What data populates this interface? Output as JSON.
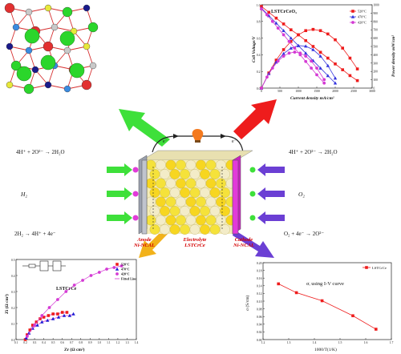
{
  "reactions": {
    "anode_water": "4H⁺ + 2O²⁻ → 2H₂O",
    "anode_h2": "H₂",
    "anode_split": "2H₂ → 4H⁺ + 4e⁻",
    "cathode_water": "4H⁺ + 2O²⁻ → 2H₂O",
    "cathode_o2": "O₂",
    "cathode_red": "O₂ + 4e⁻ → 2O²⁻",
    "electron_left": "e⁻",
    "electron_right": "e⁻"
  },
  "cell_labels": {
    "anode_line1": "Anode",
    "anode_line2": "Ni-NCAL",
    "electrolyte_line1": "Electrolyte",
    "electrolyte_line2": "LSTCrCe",
    "cathode_line1": "Cathode",
    "cathode_line2": "Ni-NCAL"
  },
  "colors": {
    "arrow_green": "#3ee03a",
    "arrow_red": "#ee1c1c",
    "arrow_orange": "#f2b21a",
    "arrow_purple": "#6b3fd4",
    "anode_plate": "#9aa0ae",
    "cathode_plate": "#e23ad9",
    "ball_yellow": "#f5e23a",
    "ball_white": "#f3ecc8"
  },
  "chart_data": [
    {
      "type": "line",
      "title": "LSTCrCeO₃",
      "xlabel": "Current density mA/cm²",
      "ylabel": "Cell Voltage/V",
      "y2label": "Power density mW/cm²",
      "xlim": [
        0,
        3000
      ],
      "ylim": [
        0.0,
        1.0
      ],
      "y2lim": [
        0,
        1000
      ],
      "xticks": [
        "0",
        "500",
        "1000",
        "1500",
        "2000",
        "2500",
        "3000"
      ],
      "yticks": [
        "0.0",
        "0.2",
        "0.4",
        "0.6",
        "0.8",
        "1.0"
      ],
      "y2ticks": [
        "0",
        "100",
        "200",
        "300",
        "400",
        "500",
        "600",
        "700",
        "800",
        "900",
        "1000"
      ],
      "legend": [
        "520°C",
        "470°C",
        "420°C"
      ],
      "series": [
        {
          "name": "520°C",
          "axis": "voltage",
          "color": "#ee1c1c",
          "marker": "square",
          "x": [
            0,
            200,
            400,
            600,
            800,
            1000,
            1200,
            1400,
            1600,
            1800,
            2000,
            2200,
            2400,
            2600
          ],
          "y": [
            0.98,
            0.91,
            0.84,
            0.77,
            0.7,
            0.64,
            0.57,
            0.5,
            0.43,
            0.36,
            0.29,
            0.22,
            0.15,
            0.09
          ]
        },
        {
          "name": "520°C",
          "axis": "power",
          "color": "#ee1c1c",
          "marker": "square",
          "x": [
            0,
            200,
            400,
            600,
            800,
            1000,
            1200,
            1400,
            1600,
            1800,
            2000,
            2200,
            2400,
            2600
          ],
          "y": [
            0,
            182,
            336,
            462,
            560,
            640,
            690,
            705,
            690,
            650,
            580,
            480,
            360,
            230
          ]
        },
        {
          "name": "470°C",
          "axis": "voltage",
          "color": "#3333dd",
          "marker": "triangle",
          "x": [
            0,
            200,
            400,
            600,
            800,
            1000,
            1200,
            1400,
            1600,
            1800,
            2000
          ],
          "y": [
            0.96,
            0.87,
            0.78,
            0.69,
            0.6,
            0.51,
            0.42,
            0.33,
            0.24,
            0.15,
            0.06
          ]
        },
        {
          "name": "470°C",
          "axis": "power",
          "color": "#3333dd",
          "marker": "triangle",
          "x": [
            0,
            200,
            400,
            600,
            800,
            1000,
            1200,
            1400,
            1600,
            1800,
            2000
          ],
          "y": [
            0,
            174,
            312,
            414,
            480,
            510,
            504,
            462,
            384,
            270,
            120
          ]
        },
        {
          "name": "420°C",
          "axis": "voltage",
          "color": "#d43ad4",
          "marker": "star",
          "x": [
            0,
            150,
            300,
            450,
            600,
            750,
            900,
            1050,
            1200,
            1350,
            1500,
            1700
          ],
          "y": [
            0.95,
            0.88,
            0.8,
            0.72,
            0.64,
            0.56,
            0.48,
            0.4,
            0.32,
            0.24,
            0.16,
            0.06
          ]
        },
        {
          "name": "420°C",
          "axis": "power",
          "color": "#d43ad4",
          "marker": "star",
          "x": [
            0,
            150,
            300,
            450,
            600,
            750,
            900,
            1050,
            1200,
            1350,
            1500,
            1700
          ],
          "y": [
            0,
            132,
            240,
            324,
            384,
            420,
            432,
            420,
            384,
            324,
            240,
            102
          ]
        }
      ]
    },
    {
      "type": "scatter",
      "title": "LSTCrCe",
      "xlabel": "Zr (Ω cm²)",
      "ylabel": "Zi (Ω cm²)",
      "xlim": [
        0.1,
        1.4
      ],
      "ylim": [
        0.0,
        0.5
      ],
      "xticks": [
        "0.1",
        "0.2",
        "0.3",
        "0.4",
        "0.5",
        "0.6",
        "0.7",
        "0.8",
        "0.9",
        "1.0",
        "1.1",
        "1.2",
        "1.3",
        "1.4"
      ],
      "yticks": [
        "0.0",
        "0.1",
        "0.2",
        "0.3",
        "0.4",
        "0.5"
      ],
      "legend": [
        "520°C",
        "470°C",
        "420°C",
        "Fitted Line"
      ],
      "series": [
        {
          "name": "520°C",
          "color": "#ee1c1c",
          "marker": "square",
          "x": [
            0.2,
            0.22,
            0.25,
            0.28,
            0.32,
            0.36,
            0.4,
            0.45,
            0.5,
            0.55,
            0.6,
            0.65
          ],
          "y": [
            0.0,
            0.03,
            0.06,
            0.09,
            0.11,
            0.13,
            0.14,
            0.15,
            0.16,
            0.16,
            0.17,
            0.17
          ]
        },
        {
          "name": "470°C",
          "color": "#1c1cd4",
          "marker": "triangle",
          "x": [
            0.21,
            0.24,
            0.28,
            0.33,
            0.38,
            0.44,
            0.5,
            0.56,
            0.62,
            0.68,
            0.72
          ],
          "y": [
            0.01,
            0.04,
            0.07,
            0.09,
            0.11,
            0.12,
            0.13,
            0.14,
            0.15,
            0.15,
            0.16
          ]
        },
        {
          "name": "420°C",
          "color": "#d43ad4",
          "marker": "star",
          "x": [
            0.22,
            0.3,
            0.38,
            0.46,
            0.55,
            0.64,
            0.73,
            0.82,
            0.91,
            1.0,
            1.08,
            1.16,
            1.24
          ],
          "y": [
            0.02,
            0.09,
            0.15,
            0.2,
            0.25,
            0.3,
            0.34,
            0.37,
            0.4,
            0.42,
            0.44,
            0.45,
            0.46
          ]
        }
      ]
    },
    {
      "type": "line",
      "title": "σᵢ using I-V curve",
      "xlabel": "1000/T(1/K)",
      "ylabel": "σ (S/cm)",
      "xlim": [
        1.2,
        1.7
      ],
      "ylim": [
        0.0,
        0.2
      ],
      "xticks": [
        "1.2",
        "1.3",
        "1.4",
        "1.5",
        "1.6",
        "1.7"
      ],
      "yticks": [
        "0.00",
        "0.02",
        "0.04",
        "0.06",
        "0.08",
        "0.10",
        "0.12",
        "0.14",
        "0.16",
        "0.18",
        "0.20"
      ],
      "legend": [
        "LSTCrCe"
      ],
      "series": [
        {
          "name": "LSTCrCe",
          "color": "#ee1c1c",
          "marker": "square",
          "x": [
            1.26,
            1.33,
            1.43,
            1.55,
            1.64
          ],
          "y": [
            0.145,
            0.122,
            0.101,
            0.062,
            0.027
          ]
        }
      ]
    }
  ]
}
